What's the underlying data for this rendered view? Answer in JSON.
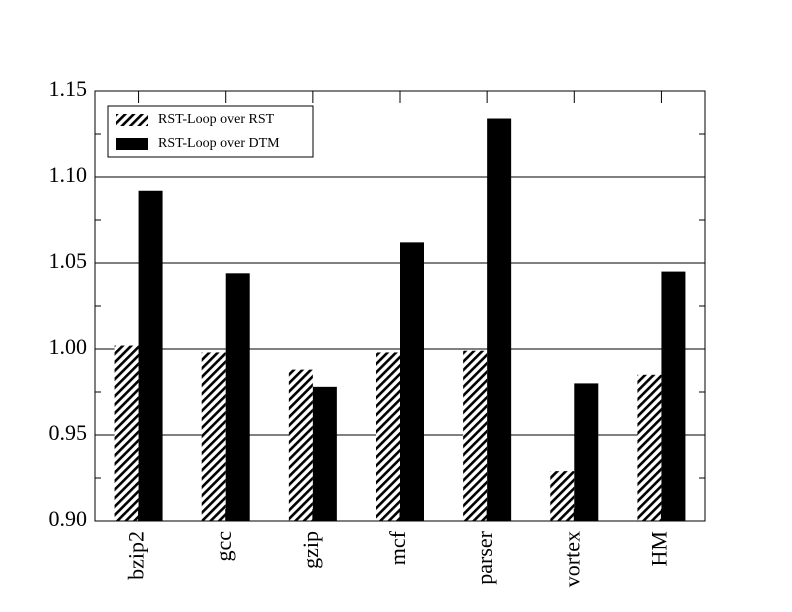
{
  "chart_data": {
    "type": "bar",
    "categories": [
      "bzip2",
      "gcc",
      "gzip",
      "mcf",
      "parser",
      "vortex",
      "HM"
    ],
    "series": [
      {
        "name": "RST-Loop over RST",
        "color": "#000000",
        "pattern": "hatch",
        "values": [
          1.002,
          0.998,
          0.988,
          0.998,
          0.999,
          0.929,
          0.985
        ]
      },
      {
        "name": "RST-Loop over DTM",
        "color": "#000000",
        "pattern": "solid",
        "values": [
          1.092,
          1.044,
          0.978,
          1.062,
          1.134,
          0.98,
          1.045
        ]
      }
    ],
    "ylim": [
      0.9,
      1.15
    ],
    "yticks": [
      {
        "value": 0.9,
        "label": "0.90"
      },
      {
        "value": 0.95,
        "label": "0.95"
      },
      {
        "value": 1.0,
        "label": "1.00"
      },
      {
        "value": 1.05,
        "label": "1.05"
      },
      {
        "value": 1.1,
        "label": "1.10"
      },
      {
        "value": 1.15,
        "label": "1.15"
      }
    ],
    "yminorticks": [
      0.925,
      0.975,
      1.025,
      1.075,
      1.125
    ],
    "grid": true,
    "legend": "upper left"
  }
}
